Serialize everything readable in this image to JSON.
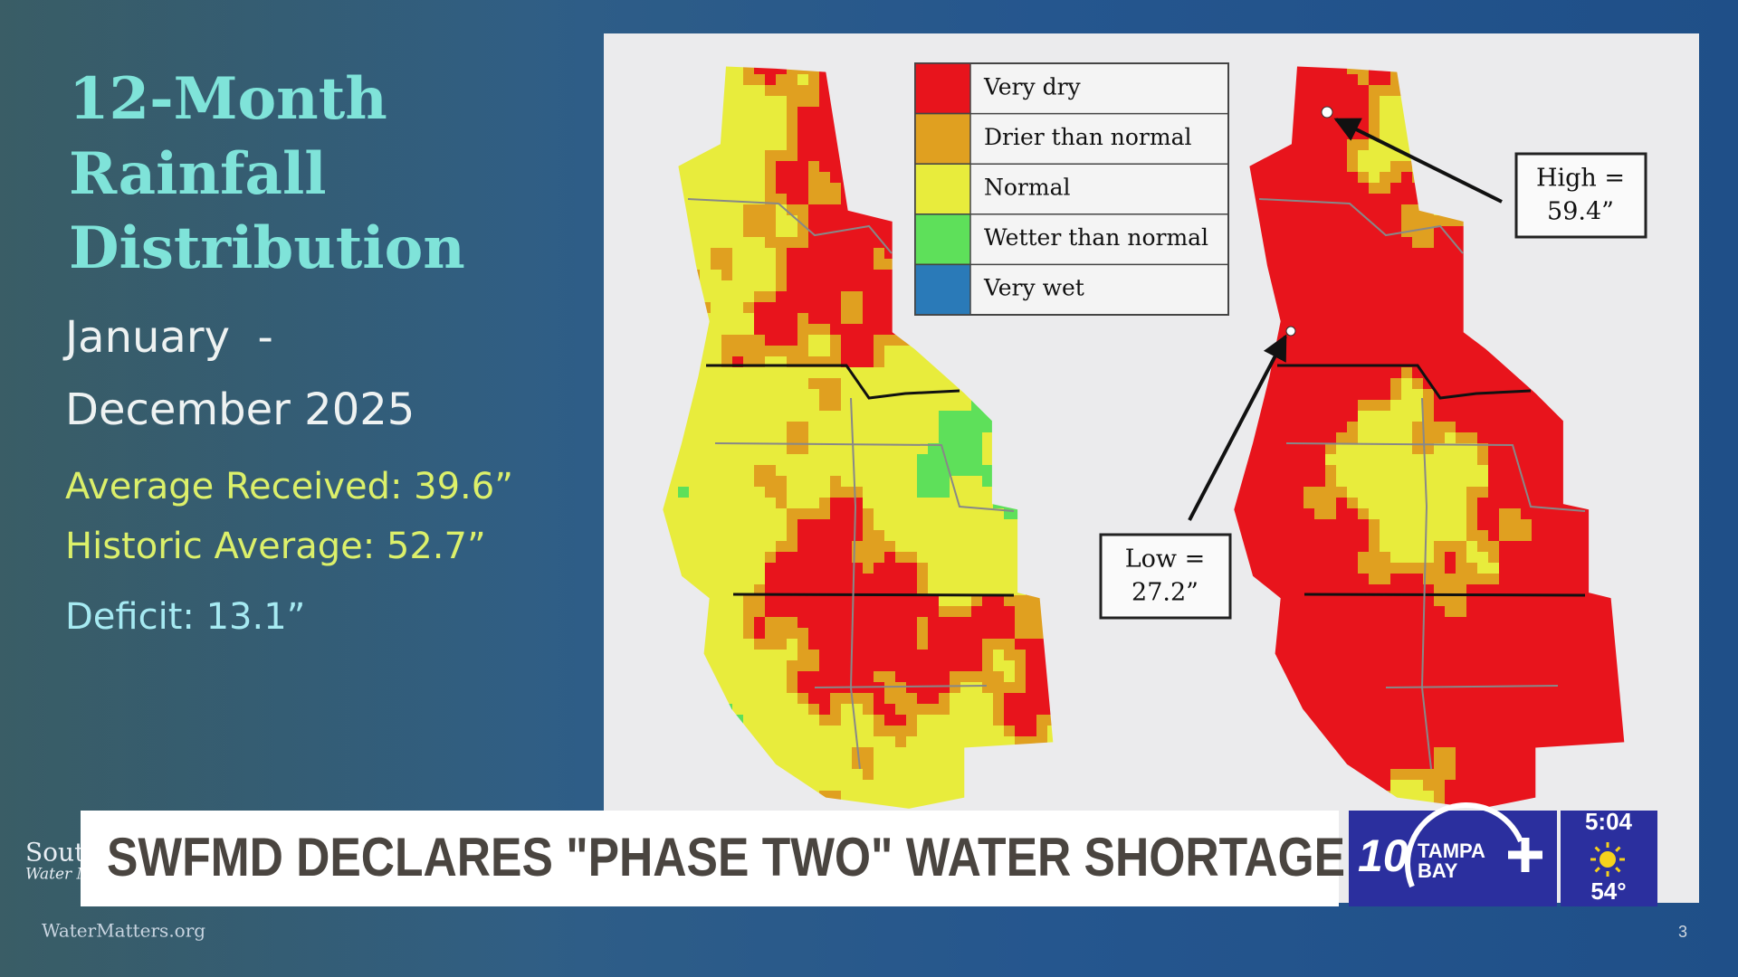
{
  "slide": {
    "title_lines": [
      "12-Month",
      "Rainfall",
      "Distribution"
    ],
    "period_lines": [
      "January  -",
      "December 2025"
    ],
    "stats": [
      "Average Received: 39.6”",
      "Historic Average: 52.7”",
      "Deficit: 13.1”"
    ],
    "legend": [
      {
        "label": "Very dry",
        "color": "#e8141c"
      },
      {
        "label": "Drier than normal",
        "color": "#e0a020"
      },
      {
        "label": "Normal",
        "color": "#e8ec3c"
      },
      {
        "label": "Wetter than normal",
        "color": "#5ee05a"
      },
      {
        "label": "Very wet",
        "color": "#2a7ab8"
      }
    ],
    "high_annotation": [
      "High =",
      "59.4”"
    ],
    "low_annotation": [
      "Low =",
      "27.2”"
    ],
    "logo_lines": [
      "Sout",
      "Water M"
    ],
    "website": "WaterMatters.org",
    "page_number": "3"
  },
  "lower_third": {
    "headline": "SWFMD DECLARES \"PHASE TWO\" WATER SHORTAGE",
    "brand_number": "10",
    "brand_name_lines": [
      "TAMPA",
      "BAY"
    ],
    "time": "5:04",
    "temperature": "54°"
  }
}
